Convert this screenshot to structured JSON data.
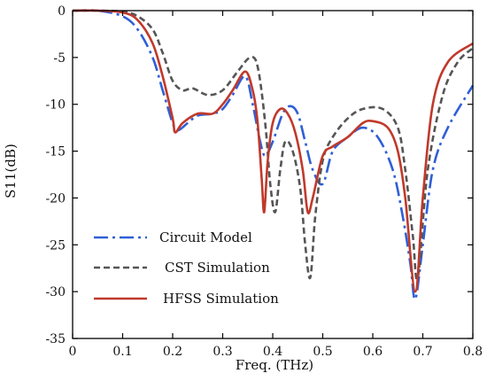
{
  "chart_data": {
    "type": "line",
    "xlabel": "Freq. (THz)",
    "ylabel": "S11(dB)",
    "xlim": [
      0,
      0.8
    ],
    "ylim": [
      -35,
      0
    ],
    "xticks": [
      "0",
      "0.1",
      "0.2",
      "0.3",
      "0.4",
      "0.5",
      "0.6",
      "0.7",
      "0.8"
    ],
    "yticks": [
      "0",
      "-5",
      "-10",
      "-15",
      "-20",
      "-25",
      "-30",
      "-35"
    ],
    "grid": false,
    "legend_position": "bottom-left",
    "series": [
      {
        "name": "Circuit Model",
        "color": "#2f5fd6",
        "dash": "dashdot",
        "x": [
          0.0,
          0.05,
          0.1,
          0.13,
          0.16,
          0.18,
          0.2,
          0.21,
          0.23,
          0.25,
          0.28,
          0.3,
          0.32,
          0.345,
          0.36,
          0.375,
          0.385,
          0.4,
          0.42,
          0.435,
          0.45,
          0.465,
          0.48,
          0.5,
          0.52,
          0.55,
          0.58,
          0.61,
          0.64,
          0.66,
          0.675,
          0.685,
          0.7,
          0.72,
          0.75,
          0.8
        ],
        "y": [
          0.0,
          0.0,
          -0.6,
          -2.0,
          -5.0,
          -8.5,
          -12.0,
          -12.8,
          -12.0,
          -11.2,
          -11.0,
          -10.5,
          -9.0,
          -7.0,
          -10.0,
          -14.0,
          -15.5,
          -14.0,
          -11.0,
          -10.2,
          -11.0,
          -14.0,
          -17.0,
          -18.5,
          -15.0,
          -13.5,
          -12.5,
          -13.5,
          -17.0,
          -22.0,
          -27.0,
          -30.8,
          -25.0,
          -17.0,
          -12.5,
          -8.0
        ]
      },
      {
        "name": "CST Simulation",
        "color": "#555555",
        "dash": "dashed",
        "x": [
          0.0,
          0.05,
          0.1,
          0.13,
          0.16,
          0.18,
          0.2,
          0.22,
          0.24,
          0.27,
          0.3,
          0.33,
          0.355,
          0.37,
          0.385,
          0.395,
          0.405,
          0.415,
          0.425,
          0.44,
          0.455,
          0.465,
          0.475,
          0.485,
          0.5,
          0.52,
          0.55,
          0.58,
          0.62,
          0.65,
          0.665,
          0.68,
          0.69,
          0.71,
          0.74,
          0.77,
          0.8
        ],
        "y": [
          0.0,
          0.0,
          -0.1,
          -0.6,
          -2.0,
          -4.5,
          -7.5,
          -8.5,
          -8.3,
          -9.0,
          -8.5,
          -6.5,
          -5.0,
          -6.0,
          -12.0,
          -18.5,
          -21.5,
          -17.0,
          -14.0,
          -15.0,
          -19.0,
          -25.0,
          -28.5,
          -22.0,
          -16.0,
          -13.5,
          -11.5,
          -10.5,
          -10.5,
          -12.5,
          -17.0,
          -24.0,
          -28.5,
          -17.0,
          -9.0,
          -5.5,
          -4.0
        ]
      },
      {
        "name": "HFSS Simulation",
        "color": "#c0392b",
        "dash": "solid",
        "x": [
          0.0,
          0.05,
          0.1,
          0.13,
          0.16,
          0.18,
          0.2,
          0.205,
          0.22,
          0.25,
          0.28,
          0.3,
          0.32,
          0.345,
          0.36,
          0.37,
          0.378,
          0.383,
          0.39,
          0.4,
          0.415,
          0.43,
          0.445,
          0.46,
          0.47,
          0.48,
          0.5,
          0.52,
          0.55,
          0.58,
          0.6,
          0.63,
          0.65,
          0.665,
          0.685,
          0.7,
          0.72,
          0.75,
          0.8
        ],
        "y": [
          0.0,
          0.0,
          -0.2,
          -1.0,
          -3.5,
          -7.0,
          -11.5,
          -13.0,
          -12.0,
          -11.0,
          -11.0,
          -10.0,
          -8.5,
          -6.5,
          -8.5,
          -12.0,
          -18.0,
          -21.5,
          -16.0,
          -12.0,
          -10.5,
          -11.0,
          -13.0,
          -17.0,
          -21.5,
          -20.0,
          -15.5,
          -14.5,
          -13.5,
          -12.0,
          -11.8,
          -12.5,
          -15.0,
          -20.0,
          -30.0,
          -20.0,
          -10.0,
          -5.5,
          -3.5
        ]
      }
    ]
  }
}
